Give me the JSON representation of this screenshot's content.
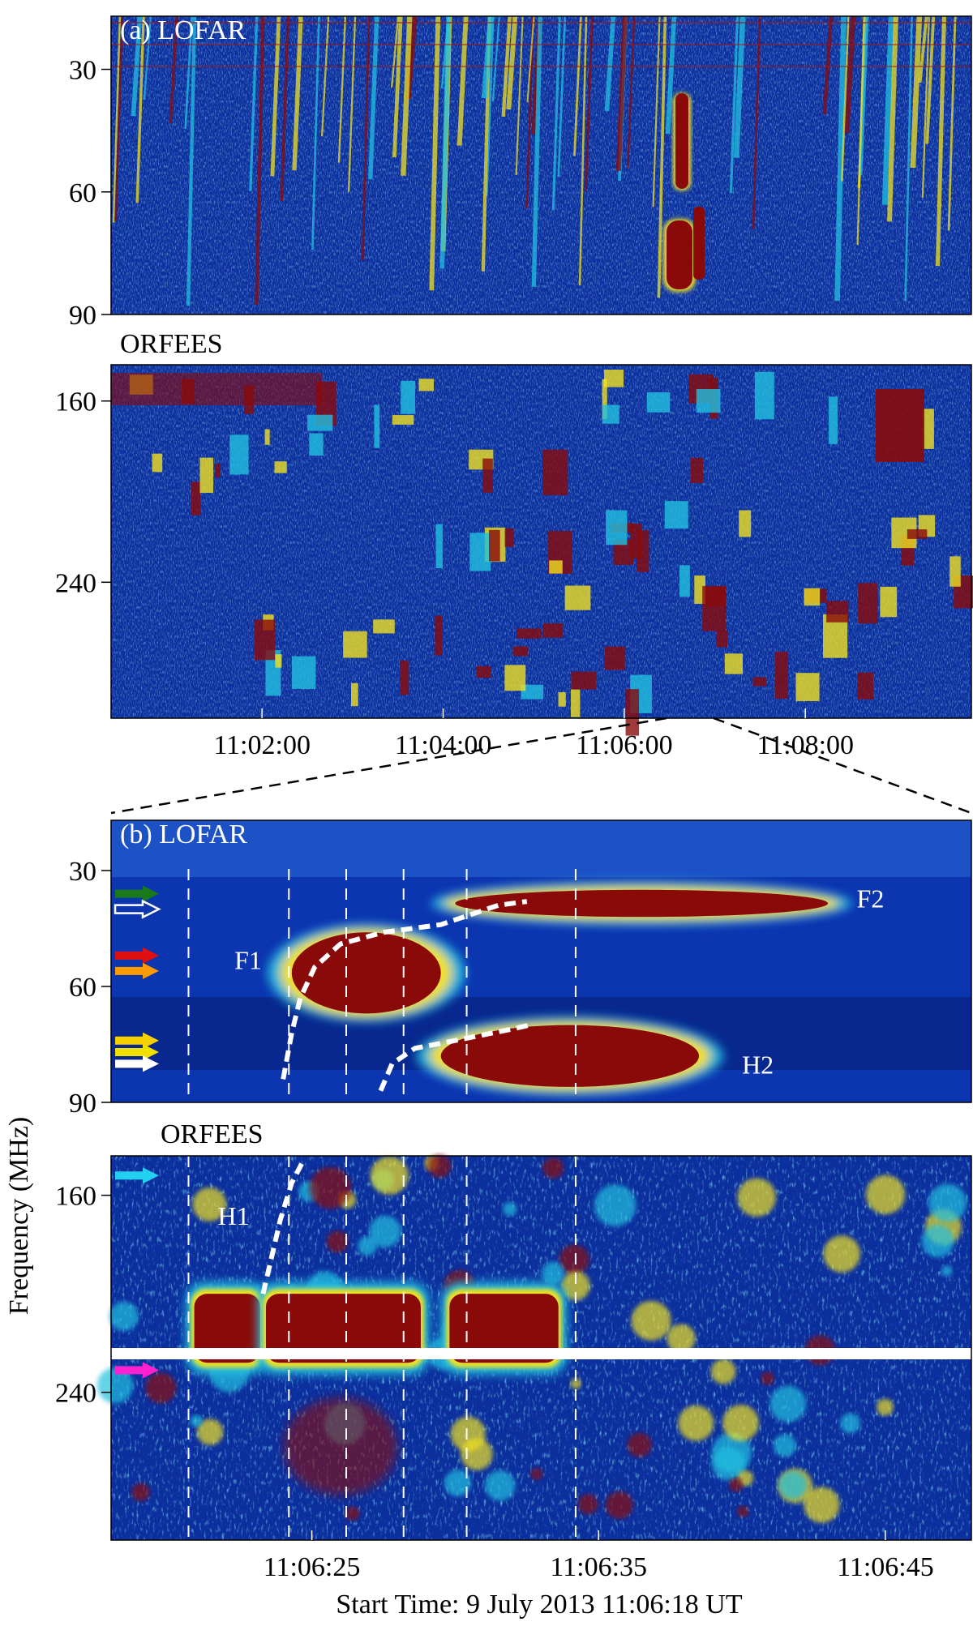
{
  "figure": {
    "ylabel": "Frequency (MHz)",
    "xlabel": "Start Time: 9 July 2013 11:06:18 UT"
  },
  "colors": {
    "background_low": "#0b2e9c",
    "mid": "#22c0e0",
    "high": "#f0e020",
    "peak": "#8a0a0a",
    "zoom_dash": "#000000",
    "fit_dash": "#ffffff"
  },
  "chart_data": [
    {
      "type": "heatmap",
      "panel_label": "(a) LOFAR",
      "instrument": "LOFAR",
      "yticks": [
        30,
        60,
        90
      ],
      "ytick_labels": [
        "30",
        "60",
        "90"
      ],
      "ylim": [
        90,
        17
      ],
      "xticks": [
        "11:02:00",
        "11:04:00",
        "11:06:00",
        "11:08:00"
      ],
      "xlim": [
        "11:00:20",
        "11:09:50"
      ],
      "features": [
        {
          "kind": "type III bursts",
          "t_range": [
            "11:00:20",
            "11:09:50"
          ]
        },
        {
          "kind": "intense burst",
          "t_range": [
            "11:06:18",
            "11:06:45"
          ],
          "f_range": [
            34,
            88
          ]
        }
      ]
    },
    {
      "type": "heatmap",
      "panel_label": "ORFEES",
      "instrument": "ORFEES",
      "yticks": [
        160,
        240
      ],
      "ytick_labels": [
        "160",
        "240"
      ],
      "ylim": [
        300,
        144
      ],
      "xticks": [
        "11:02:00",
        "11:04:00",
        "11:06:00",
        "11:08:00"
      ],
      "xlim": [
        "11:00:20",
        "11:09:50"
      ]
    },
    {
      "type": "heatmap",
      "panel_label": "(b) LOFAR",
      "instrument": "LOFAR",
      "yticks": [
        30,
        60,
        90
      ],
      "ytick_labels": [
        "30",
        "60",
        "90"
      ],
      "ylim": [
        90,
        17
      ],
      "xlim_seconds": [
        18,
        48
      ],
      "dashed_vertical_times_s": [
        20.7,
        24.2,
        26.2,
        28.2,
        30.4,
        34.2
      ],
      "annotations": [
        {
          "text": "F1",
          "t": 22.3,
          "f": 53
        },
        {
          "text": "F2",
          "t": 44.0,
          "f": 37
        },
        {
          "text": "H2",
          "t": 40.0,
          "f": 80
        }
      ],
      "fits": [
        {
          "name": "F1",
          "points": [
            [
              24.0,
              84
            ],
            [
              24.3,
              72
            ],
            [
              24.6,
              63
            ],
            [
              25.1,
              55
            ],
            [
              26.0,
              49
            ],
            [
              27.5,
              46
            ],
            [
              29.5,
              44
            ],
            [
              31.5,
              39
            ],
            [
              32.5,
              38
            ]
          ]
        },
        {
          "name": "H2",
          "points": [
            [
              27.4,
              87
            ],
            [
              27.8,
              80
            ],
            [
              28.6,
              76
            ],
            [
              30.0,
              74
            ],
            [
              32.0,
              71
            ],
            [
              32.6,
              70
            ]
          ]
        }
      ],
      "arrows": [
        {
          "color": "#1a7a1a",
          "f": 36
        },
        {
          "color": "#ffffff",
          "style": "outline",
          "f": 40
        },
        {
          "color": "#e01010",
          "f": 52
        },
        {
          "color": "#ff9a00",
          "f": 56
        },
        {
          "color": "#f7d000",
          "f": 74
        },
        {
          "color": "#f0e000",
          "f": 77
        },
        {
          "color": "#ffffff",
          "f": 80
        }
      ],
      "features": [
        {
          "name": "F1",
          "kind": "fundamental band",
          "t_range": [
            24.3,
            29.5
          ],
          "f_range": [
            46,
            67
          ]
        },
        {
          "name": "F2",
          "kind": "fundamental band",
          "t_range": [
            30.0,
            43.0
          ],
          "f_range": [
            35,
            42
          ]
        },
        {
          "name": "H2",
          "kind": "harmonic band",
          "t_range": [
            29.5,
            38.5
          ],
          "f_range": [
            70,
            86
          ]
        }
      ]
    },
    {
      "type": "heatmap",
      "panel_label": "ORFEES",
      "instrument": "ORFEES",
      "yticks": [
        160,
        240
      ],
      "ytick_labels": [
        "160",
        "240"
      ],
      "ylim": [
        300,
        144
      ],
      "xticks": [
        "11:06:25",
        "11:06:35",
        "11:06:45"
      ],
      "xlim_seconds": [
        18,
        48
      ],
      "dashed_vertical_times_s": [
        20.7,
        24.2,
        26.2,
        28.2,
        30.4,
        34.2
      ],
      "annotations": [
        {
          "text": "H1",
          "t": 22.0,
          "f": 168
        }
      ],
      "fits": [
        {
          "name": "H1",
          "points": [
            [
              23.3,
              200
            ],
            [
              23.6,
              185
            ],
            [
              23.9,
              170
            ],
            [
              24.3,
              155
            ],
            [
              24.7,
              146
            ]
          ]
        }
      ],
      "arrows": [
        {
          "color": "#22d0f0",
          "f": 152
        },
        {
          "color": "#ff20d0",
          "f": 231
        }
      ],
      "features": [
        {
          "name": "H1",
          "kind": "harmonic band",
          "t_range": [
            20.7,
            34.2
          ],
          "f_range": [
            200,
            228
          ]
        }
      ]
    }
  ]
}
